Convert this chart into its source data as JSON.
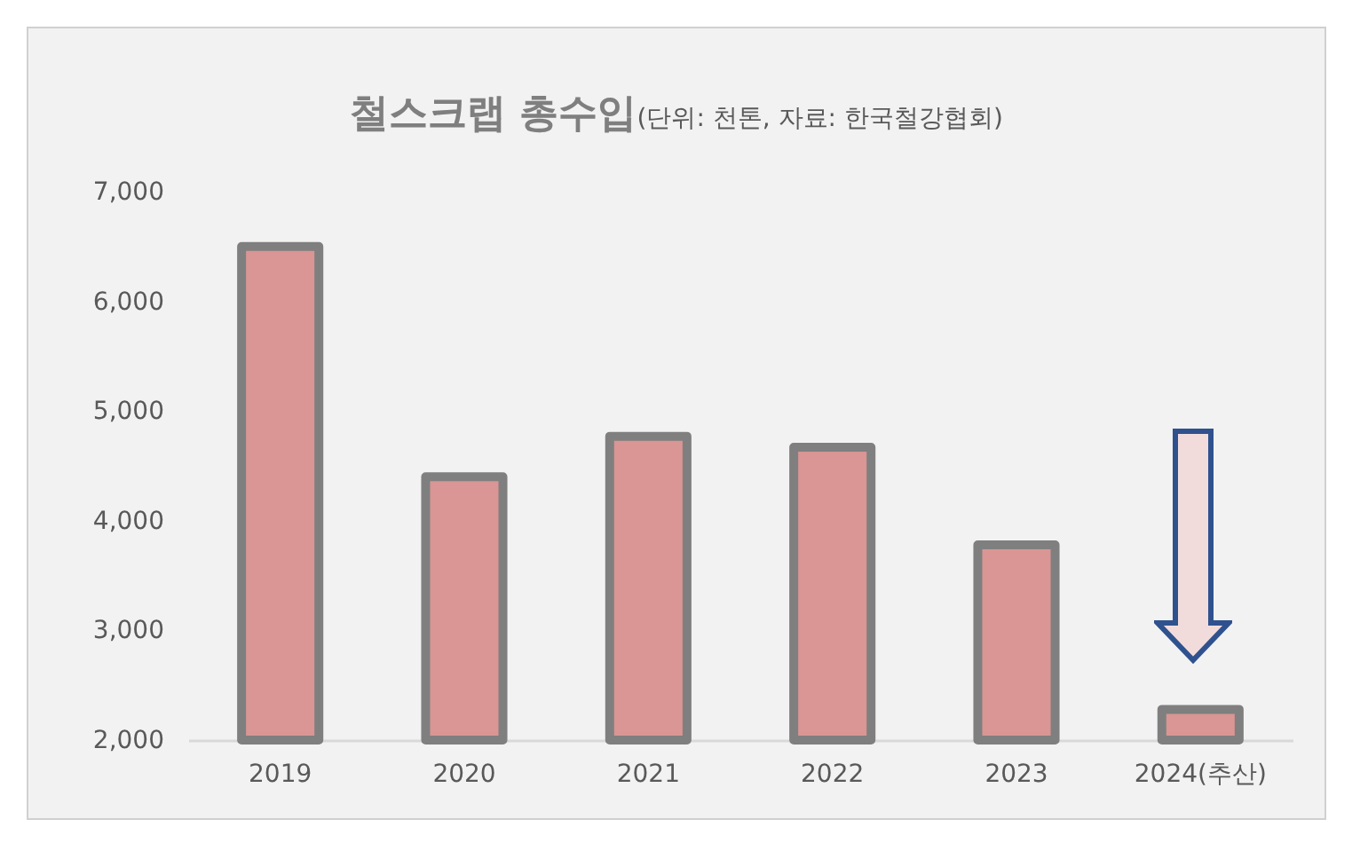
{
  "chart_data": {
    "type": "bar",
    "title": "철스크랩 총수입",
    "subtitle": "(단위: 천톤, 자료: 한국철강협회)",
    "categories": [
      "2019",
      "2020",
      "2021",
      "2022",
      "2023",
      "2024(추산)"
    ],
    "values": [
      6500,
      4400,
      4770,
      4670,
      3780,
      2280
    ],
    "color": "#d99694",
    "ylim": [
      2000,
      7000
    ],
    "yticks": [
      {
        "value": 2000,
        "label": "2,000"
      },
      {
        "value": 3000,
        "label": "3,000"
      },
      {
        "value": 4000,
        "label": "4,000"
      },
      {
        "value": 5000,
        "label": "5,000"
      },
      {
        "value": 6000,
        "label": "6,000"
      },
      {
        "value": 7000,
        "label": "7,000"
      }
    ]
  }
}
